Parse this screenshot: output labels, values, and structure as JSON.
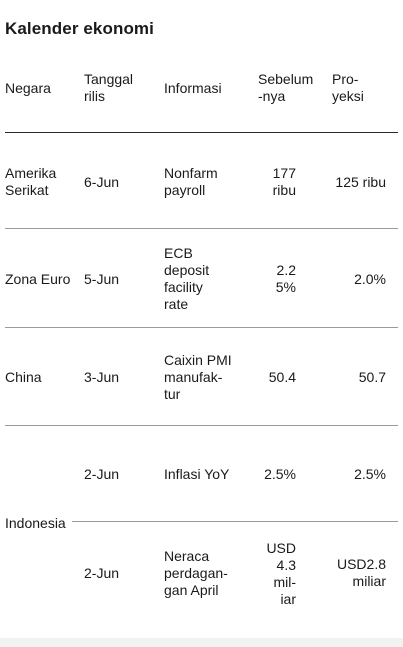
{
  "title": "Kalender ekonomi",
  "headers": {
    "negara": "Negara",
    "tanggal_1": "Tanggal",
    "tanggal_2": "rilis",
    "informasi": "Informasi",
    "sebelum_1": "Sebelum",
    "sebelum_2": "-nya",
    "proyeksi_1": "Pro-",
    "proyeksi_2": "yeksi"
  },
  "rows": [
    {
      "negara": [
        "Amerika",
        "Serikat"
      ],
      "tanggal": "6-Jun",
      "informasi": [
        "Nonfarm",
        "payroll"
      ],
      "sebelum": [
        "177",
        "ribu"
      ],
      "proyeksi": [
        "125 ribu"
      ]
    },
    {
      "negara": [
        "Zona Euro"
      ],
      "tanggal": "5-Jun",
      "informasi": [
        "ECB",
        "deposit",
        "facility",
        "rate"
      ],
      "sebelum": [
        "2.2",
        "5%"
      ],
      "proyeksi": [
        "2.0%"
      ]
    },
    {
      "negara": [
        "China"
      ],
      "tanggal": "3-Jun",
      "informasi": [
        "Caixin PMI",
        "manufak-",
        "tur"
      ],
      "sebelum": [
        "50.4"
      ],
      "proyeksi": [
        "50.7"
      ]
    },
    {
      "negara": [
        "Indonesia"
      ],
      "tanggal": "2-Jun",
      "informasi": [
        "Inflasi YoY"
      ],
      "sebelum": [
        "2.5%"
      ],
      "proyeksi": [
        "2.5%"
      ]
    },
    {
      "negara": [
        ""
      ],
      "tanggal": "2-Jun",
      "informasi": [
        "Neraca",
        "perdagan-",
        "gan April"
      ],
      "sebelum": [
        "USD",
        "4.3",
        "mil-",
        "iar"
      ],
      "proyeksi": [
        "USD2.8",
        "miliar"
      ]
    }
  ]
}
